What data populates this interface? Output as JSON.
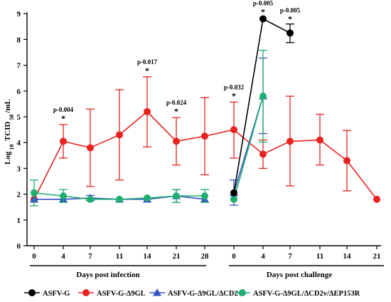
{
  "chart_data": {
    "type": "line",
    "ylabel_main": "Log",
    "ylabel_sub": "10",
    "ylabel_rest": " TCID",
    "ylabel_sub2": "50",
    "ylabel_end": "/mL",
    "ylim": [
      0,
      9
    ],
    "yticks": [
      "0",
      "1",
      "2",
      "3",
      "4",
      "5",
      "6",
      "7",
      "8",
      "9"
    ],
    "x_tick_labels": [
      "0",
      "4",
      "7",
      "11",
      "14",
      "21",
      "28",
      "0",
      "4",
      "7",
      "11",
      "14",
      "21"
    ],
    "segment_labels": [
      "Days post infection",
      "Days post challenge"
    ],
    "annotations": [
      {
        "x_index": 1,
        "y": 4.7,
        "label": "p-0.004",
        "star": "*"
      },
      {
        "x_index": 4,
        "y": 6.55,
        "label": "p-0.017",
        "star": "*"
      },
      {
        "x_index": 5,
        "y": 4.97,
        "label": "p-0.024",
        "star": "*"
      },
      {
        "x_index": 7,
        "y": 5.57,
        "label": "p-0.032",
        "star": "*"
      },
      {
        "x_index": 8,
        "y": 8.83,
        "label": "p-0.005",
        "star": "*"
      },
      {
        "x_index": 9,
        "y": 8.55,
        "label": "p-0.005",
        "star": "*"
      }
    ],
    "series": [
      {
        "name": "ASFV-G-Δ9GL",
        "color": "#e8221f",
        "marker": "circle",
        "points": [
          {
            "i": 0,
            "y": 1.8,
            "lo": 1.8,
            "hi": 1.8
          },
          {
            "i": 1,
            "y": 4.05,
            "lo": 3.4,
            "hi": 4.7
          },
          {
            "i": 2,
            "y": 3.8,
            "lo": 2.3,
            "hi": 5.3
          },
          {
            "i": 3,
            "y": 4.3,
            "lo": 2.55,
            "hi": 6.05
          },
          {
            "i": 4,
            "y": 5.2,
            "lo": 3.83,
            "hi": 6.55
          },
          {
            "i": 5,
            "y": 4.05,
            "lo": 3.13,
            "hi": 4.97
          },
          {
            "i": 6,
            "y": 4.25,
            "lo": 2.75,
            "hi": 5.75
          },
          {
            "i": 7,
            "y": 4.5,
            "lo": 3.4,
            "hi": 5.57
          },
          {
            "i": 8,
            "y": 3.55,
            "lo": 3.0,
            "hi": 4.1
          },
          {
            "i": 9,
            "y": 4.05,
            "lo": 2.32,
            "hi": 5.8
          },
          {
            "i": 10,
            "y": 4.1,
            "lo": 3.13,
            "hi": 5.1
          },
          {
            "i": 11,
            "y": 3.3,
            "lo": 2.13,
            "hi": 4.47
          },
          {
            "i": 12,
            "y": 1.8,
            "lo": 1.8,
            "hi": 1.8
          }
        ]
      },
      {
        "name": "ASFV-G-Δ9GL/ΔCD2v",
        "color": "#3452c4",
        "marker": "triangle",
        "points": [
          {
            "i": 0,
            "y": 1.8,
            "lo": 1.8,
            "hi": 1.8
          },
          {
            "i": 1,
            "y": 1.8,
            "lo": 1.8,
            "hi": 1.8
          },
          {
            "i": 2,
            "y": 1.85,
            "lo": 1.75,
            "hi": 1.95
          },
          {
            "i": 3,
            "y": 1.8,
            "lo": 1.8,
            "hi": 1.8
          },
          {
            "i": 4,
            "y": 1.8,
            "lo": 1.8,
            "hi": 1.8
          },
          {
            "i": 5,
            "y": 1.93,
            "lo": 1.68,
            "hi": 2.18
          },
          {
            "i": 6,
            "y": 1.8,
            "lo": 1.8,
            "hi": 1.8
          },
          {
            "i": 7,
            "y": 2.05,
            "lo": 1.57,
            "hi": 2.55
          },
          {
            "i": 8,
            "y": 5.8,
            "lo": 4.35,
            "hi": 7.28
          }
        ]
      },
      {
        "name": "ASFV-G-Δ9GL/ΔCD2v/ΔEP153R",
        "color": "#1fae72",
        "marker": "circle",
        "points": [
          {
            "i": 0,
            "y": 2.05,
            "lo": 1.55,
            "hi": 2.55
          },
          {
            "i": 1,
            "y": 1.93,
            "lo": 1.68,
            "hi": 2.18
          },
          {
            "i": 2,
            "y": 1.8,
            "lo": 1.8,
            "hi": 1.8
          },
          {
            "i": 3,
            "y": 1.8,
            "lo": 1.8,
            "hi": 1.8
          },
          {
            "i": 4,
            "y": 1.85,
            "lo": 1.85,
            "hi": 1.85
          },
          {
            "i": 5,
            "y": 1.93,
            "lo": 1.68,
            "hi": 2.18
          },
          {
            "i": 6,
            "y": 1.93,
            "lo": 1.68,
            "hi": 2.18
          },
          {
            "i": 7,
            "y": 1.8,
            "lo": 1.8,
            "hi": 1.8
          },
          {
            "i": 8,
            "y": 5.8,
            "lo": 4.02,
            "hi": 7.58
          }
        ]
      },
      {
        "name": "ASFV-G",
        "color": "#000000",
        "marker": "circle",
        "points": [
          {
            "i": 7,
            "y": 2.05,
            "lo": 2.05,
            "hi": 2.05
          },
          {
            "i": 8,
            "y": 8.8,
            "lo": 8.8,
            "hi": 8.8
          },
          {
            "i": 9,
            "y": 8.25,
            "lo": 7.88,
            "hi": 8.6
          }
        ]
      }
    ],
    "legend": [
      {
        "label": "ASFV-G",
        "color": "#000000",
        "marker": "circle"
      },
      {
        "label": "ASFV-G-Δ9GL",
        "color": "#e8221f",
        "marker": "circle"
      },
      {
        "label": "ASFV-G-Δ9GL/ΔCD2v",
        "color": "#3452c4",
        "marker": "triangle"
      },
      {
        "label": "ASFV-G-Δ9GL/ΔCD2v/ΔEP153R",
        "color": "#1fae72",
        "marker": "circle"
      }
    ]
  }
}
